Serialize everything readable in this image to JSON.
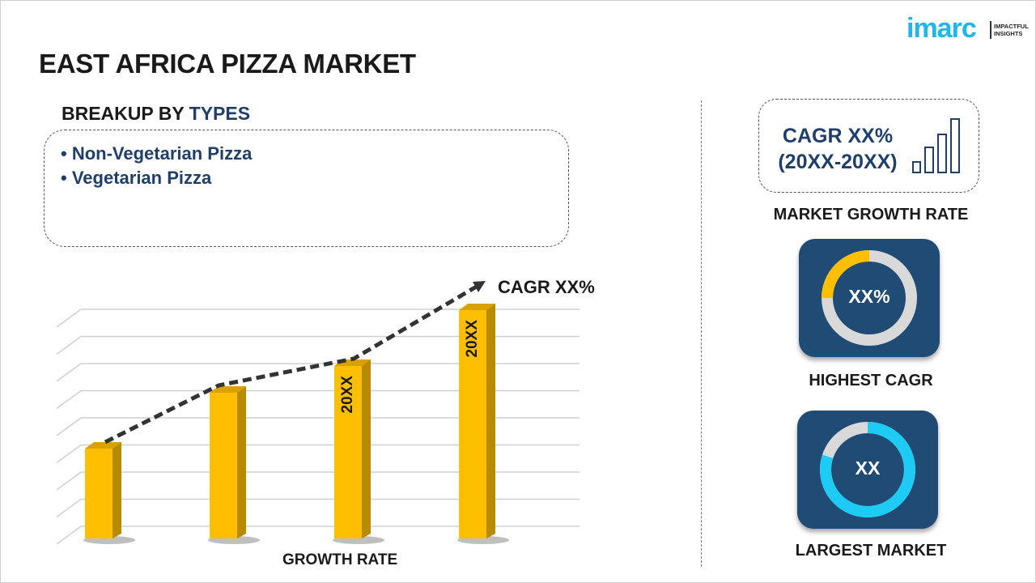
{
  "header": {
    "title": "EAST AFRICA PIZZA MARKET",
    "logo_word": "imarc",
    "logo_tagline_1": "IMPACTFUL",
    "logo_tagline_2": "INSIGHTS"
  },
  "breakup": {
    "prefix": "BREAKUP BY ",
    "highlight": "TYPES",
    "items": [
      "Non-Vegetarian Pizza",
      "Vegetarian Pizza"
    ]
  },
  "growth_chart": {
    "xlabel": "GROWTH RATE",
    "trend_label": "CAGR XX%",
    "bar_labels": [
      "",
      "",
      "20XX",
      "20XX"
    ],
    "bar_relative_heights": [
      0.37,
      0.6,
      0.71,
      0.94
    ],
    "bar_color": "#fdbf00",
    "bar_side_color": "#b88a00",
    "trend_color": "#333333"
  },
  "right": {
    "cagr_line1": "CAGR XX%",
    "cagr_line2": "(20XX-20XX)",
    "market_growth_label": "MARKET GROWTH RATE",
    "highest_cagr": {
      "value": "XX%",
      "label": "HIGHEST CAGR",
      "fill_fraction": 0.25,
      "fill_color": "#fdbf00"
    },
    "largest_market": {
      "value": "XX",
      "label": "LARGEST MARKET",
      "fill_fraction": 0.8,
      "fill_color": "#1ecbf5"
    },
    "card_color": "#1f4b75",
    "ring_track_color": "#d9d9d9"
  }
}
